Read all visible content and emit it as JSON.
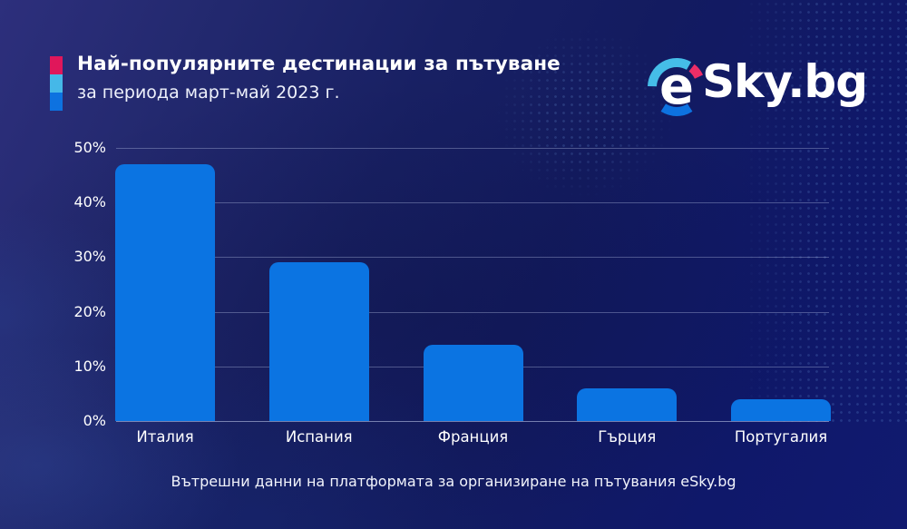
{
  "header": {
    "title": "Най-популярните дестинации за пътуване",
    "subtitle": "за периода март-май 2023 г.",
    "accent_stripe_colors": [
      "#e0175b",
      "#45b8e8",
      "#0d72e0"
    ]
  },
  "logo": {
    "name": "eSky.bg",
    "letter": "e",
    "text": "Sky",
    "suffix": ".bg",
    "arc_colors": {
      "top": "#45bde8",
      "accent": "#ed2e67",
      "bottom": "#0d72e0"
    }
  },
  "chart_data": {
    "type": "bar",
    "title": "Най-популярните дестинации за пътуване",
    "subtitle": "за периода март-май 2023 г.",
    "categories": [
      "Италия",
      "Испания",
      "Франция",
      "Гърция",
      "Португалия"
    ],
    "values": [
      47,
      29,
      14,
      6,
      4
    ],
    "value_unit": "%",
    "xlabel": "",
    "ylabel": "",
    "ylim": [
      0,
      50
    ],
    "yticks": [
      0,
      10,
      20,
      30,
      40,
      50
    ],
    "ytick_labels": [
      "0%",
      "10%",
      "20%",
      "30%",
      "40%",
      "50%"
    ],
    "grid": true,
    "legend": false,
    "bar_color": "#0b74e2"
  },
  "footer": {
    "source": "Вътрешни данни на платформата за организиране на пътувания eSky.bg"
  }
}
